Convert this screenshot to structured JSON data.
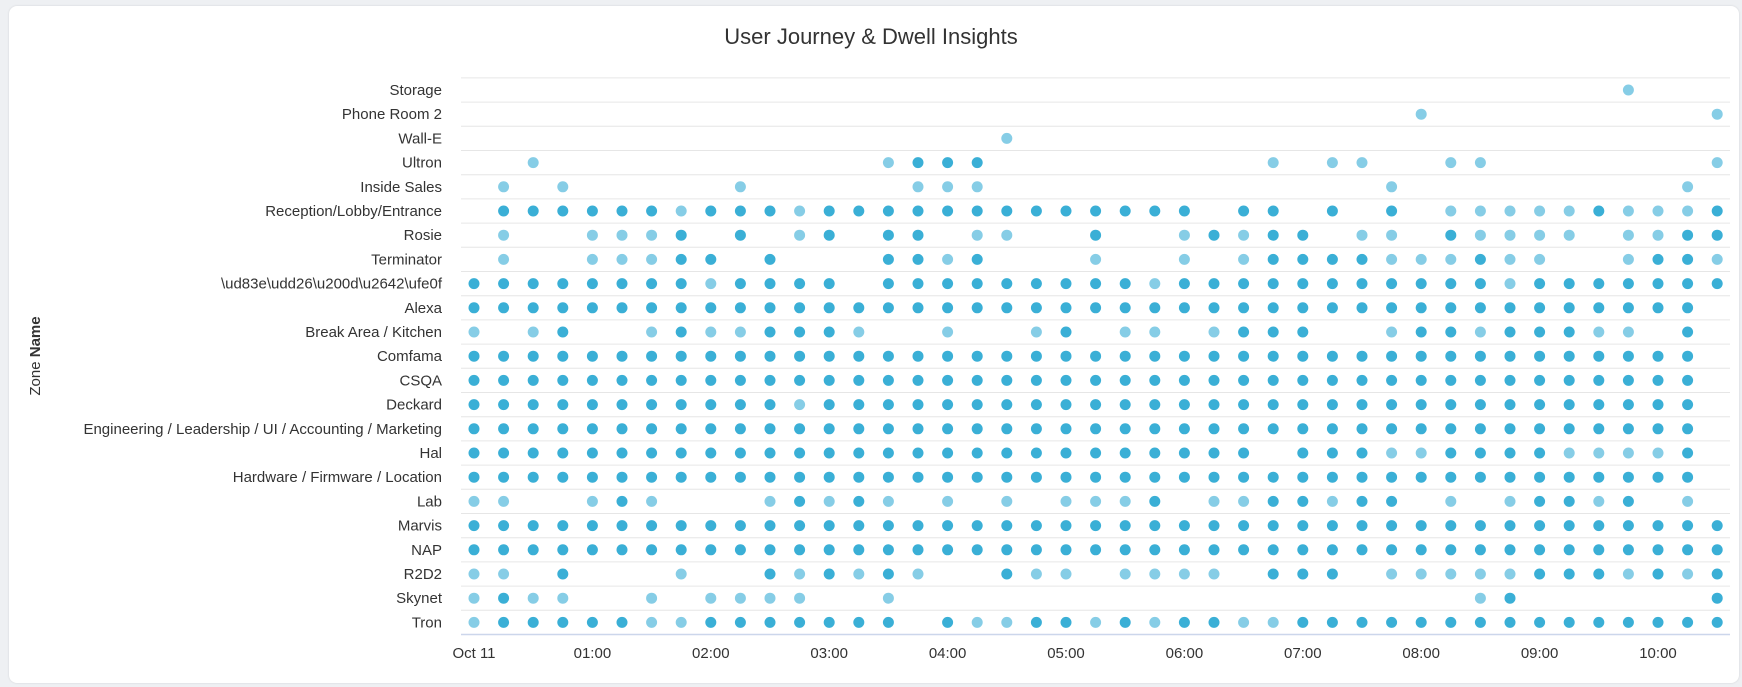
{
  "chart_data": {
    "type": "scatter",
    "title": "User Journey & Dwell Insights",
    "ylabel_prefix": "Zone ",
    "ylabel_bold": "Name",
    "xlabel": "",
    "x_ticks": [
      {
        "col": 0,
        "label": "Oct 11"
      },
      {
        "col": 4,
        "label": "01:00"
      },
      {
        "col": 8,
        "label": "02:00"
      },
      {
        "col": 12,
        "label": "03:00"
      },
      {
        "col": 16,
        "label": "04:00"
      },
      {
        "col": 20,
        "label": "05:00"
      },
      {
        "col": 24,
        "label": "06:00"
      },
      {
        "col": 28,
        "label": "07:00"
      },
      {
        "col": 32,
        "label": "08:00"
      },
      {
        "col": 36,
        "label": "09:00"
      },
      {
        "col": 40,
        "label": "10:00"
      }
    ],
    "x_interval_minutes": 15,
    "x_columns": 43,
    "legend": "D = high dwell (dark), L = low dwell (light), . = no visit",
    "colors": {
      "high": "#3aafd6",
      "low": "#86cde6",
      "grid": "#e6e6e6",
      "axis": "#ccd6eb"
    },
    "series": [
      {
        "zone": "Storage",
        "visits": ".......................................L..."
      },
      {
        "zone": "Phone Room 2",
        "visits": "................................L.........L"
      },
      {
        "zone": "Wall-E",
        "visits": "..................L........................"
      },
      {
        "zone": "Ultron",
        "visits": "..L...........LDDD.........L.LL..LL.......L"
      },
      {
        "zone": "Inside Sales",
        "visits": ".L.L.....L.....LLL.............L.........L."
      },
      {
        "zone": "Reception/Lobby/Entrance",
        "visits": ".DDDDDDLDDDLDDDDDDDDDDDDD.DD.D.D.LLLLLDLLLD"
      },
      {
        "zone": "Rosie",
        "visits": ".L..LLLD.D.LD.DD.LL..D..LDLDD.LL.DLLLL.LLDD"
      },
      {
        "zone": "Terminator",
        "visits": ".L..LLLDD.D...DDLD...L..L.LDDDDLLLDLL..LDDL"
      },
      {
        "zone": "\\ud83e\\udd26\\u200d\\u2642\\ufe0f",
        "visits": "DDDDDDDDLDDDD.DDDDDDDDDLDDDDDDDDDDDLDDDDDDD"
      },
      {
        "zone": "Alexa",
        "visits": "DDDDDDDDDDDDDDDDDDDDDDDDDDDDDDDDDDDDDDDDDD."
      },
      {
        "zone": "Break Area / Kitchen",
        "visits": "L.LD..LDLLDDDL..L..LD.LL.LDDD..LDDLDDDLL.D."
      },
      {
        "zone": "Comfama",
        "visits": "DDDDDDDDDDDDDDDDDDDDDDDDDDDDDDDDDDDDDDDDDD."
      },
      {
        "zone": "CSQA",
        "visits": "DDDDDDDDDDDDDDDDDDDDDDDDDDDDDDDDDDDDDDDDDD."
      },
      {
        "zone": "Deckard",
        "visits": "DDDDDDDDDDDLDDDDDDDDDDDDDDDDDDDDDDDDDDDDDD."
      },
      {
        "zone": "Engineering / Leadership / UI / Accounting / Marketing",
        "visits": "DDDDDDDDDDDDDDDDDDDDDDDDDDDDDDDDDDDDDDDDDD."
      },
      {
        "zone": "Hal",
        "visits": "DDDDDDDDDDDDDDDDDDDDDDDDDDD.DDDLLDDDDLLLLD."
      },
      {
        "zone": "Hardware / Firmware / Location",
        "visits": "DDDDDDDDDDDDDDDDDDDDDDDDDDDDDDDDDDDDDDDDDD."
      },
      {
        "zone": "Lab",
        "visits": "LL..LDL...LDLDL.L.L.LLLD.LLDDLDD.L.LDDLD.L."
      },
      {
        "zone": "Marvis",
        "visits": "DDDDDDDDDDDDDDDDDDDDDDDDDDDDDDDDDDDDDDDDDDD"
      },
      {
        "zone": "NAP",
        "visits": "DDDDDDDDDDDDDDDDDDDDDDDDDDDDDDDDDDDDDDDDDDD"
      },
      {
        "zone": "R2D2",
        "visits": "LL.D...L..DLDLDL..DLL.LLLL.DDD.LLLLLDDDLDLD"
      },
      {
        "zone": "Skynet",
        "visits": "LDLL..L.LLLL..L...................LD......D"
      },
      {
        "zone": "Tron",
        "visits": "LDDDDDLLDDDDDDD.DLLDDLDLDDLLDDDDDDDDDDDDDDD"
      }
    ]
  }
}
